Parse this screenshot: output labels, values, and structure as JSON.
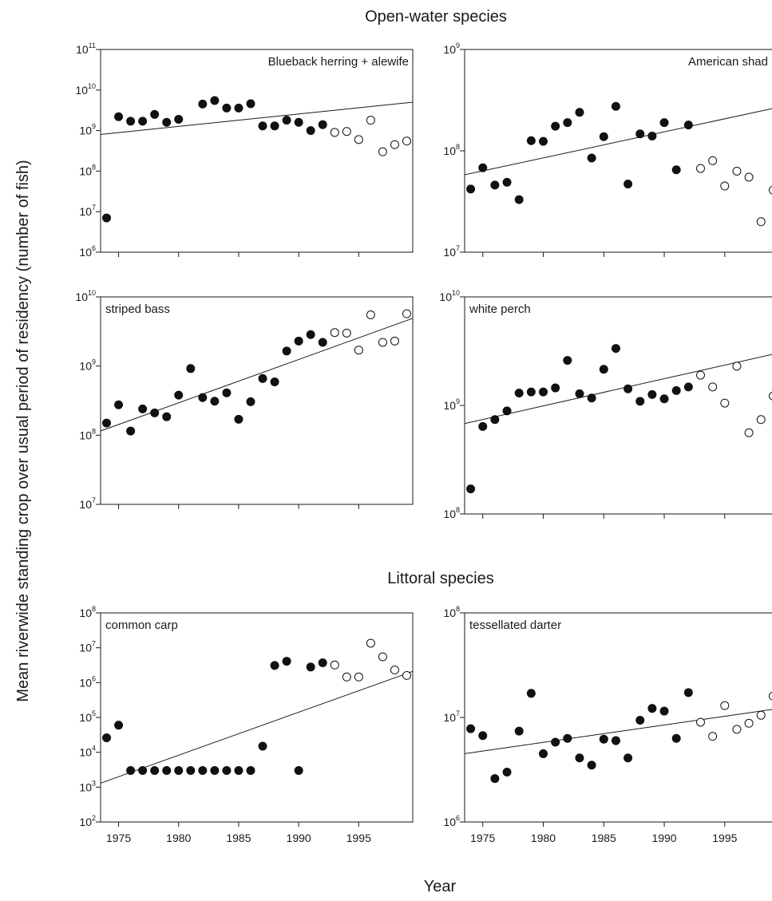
{
  "figure": {
    "group_headings": [
      "Open-water species",
      "Littoral species"
    ],
    "xlabel": "Year",
    "ylabel": "Mean riverwide standing crop over usual period of residency (number of fish)"
  },
  "chart_data": [
    {
      "type": "scatter",
      "label": "Blueback herring + alewife",
      "label_position": "top-right",
      "yscale": "log",
      "ylim_exp": [
        6,
        11
      ],
      "xlim": [
        1973.5,
        1999.5
      ],
      "xticks": [
        1975,
        1980,
        1985,
        1990,
        1995
      ],
      "show_x_tick_labels": false,
      "filled": {
        "x": [
          1974,
          1975,
          1976,
          1977,
          1978,
          1979,
          1980,
          1982,
          1983,
          1984,
          1985,
          1986,
          1987,
          1988,
          1989,
          1990,
          1991,
          1992
        ],
        "y": [
          7000000.0,
          2200000000.0,
          1700000000.0,
          1700000000.0,
          2500000000.0,
          1600000000.0,
          1900000000.0,
          4500000000.0,
          5500000000.0,
          3600000000.0,
          3600000000.0,
          4600000000.0,
          1300000000.0,
          1300000000.0,
          1800000000.0,
          1600000000.0,
          1000000000.0,
          1400000000.0
        ]
      },
      "open": {
        "x": [
          1993,
          1994,
          1995,
          1996,
          1997,
          1998,
          1999
        ],
        "y": [
          900000000.0,
          950000000.0,
          600000000.0,
          1800000000.0,
          300000000.0,
          450000000.0,
          550000000.0
        ]
      },
      "trend": {
        "x": [
          1973.5,
          1999.5
        ],
        "y": [
          800000000.0,
          5000000000.0
        ]
      }
    },
    {
      "type": "scatter",
      "label": "American shad",
      "label_position": "top-right",
      "yscale": "log",
      "ylim_exp": [
        7,
        9
      ],
      "xlim": [
        1973.5,
        1999.5
      ],
      "xticks": [
        1975,
        1980,
        1985,
        1990,
        1995
      ],
      "show_x_tick_labels": false,
      "filled": {
        "x": [
          1974,
          1975,
          1976,
          1977,
          1978,
          1979,
          1980,
          1981,
          1982,
          1983,
          1984,
          1985,
          1986,
          1987,
          1988,
          1989,
          1990,
          1991,
          1992
        ],
        "y": [
          42000000.0,
          68000000.0,
          46000000.0,
          49000000.0,
          33000000.0,
          126000000.0,
          124000000.0,
          175000000.0,
          190000000.0,
          240000000.0,
          85000000.0,
          138000000.0,
          275000000.0,
          47000000.0,
          147000000.0,
          140000000.0,
          190000000.0,
          65000000.0,
          180000000.0
        ]
      },
      "open": {
        "x": [
          1993,
          1994,
          1995,
          1996,
          1997,
          1998,
          1999
        ],
        "y": [
          67000000.0,
          80000000.0,
          45000000.0,
          63000000.0,
          55000000.0,
          20000000.0,
          41000000.0
        ]
      },
      "trend": {
        "x": [
          1973.5,
          1999.5
        ],
        "y": [
          58000000.0,
          270000000.0
        ]
      }
    },
    {
      "type": "scatter",
      "label": "striped bass",
      "label_position": "top-left",
      "yscale": "log",
      "ylim_exp": [
        7,
        10
      ],
      "xlim": [
        1973.5,
        1999.5
      ],
      "xticks": [
        1975,
        1980,
        1985,
        1990,
        1995
      ],
      "show_x_tick_labels": false,
      "filled": {
        "x": [
          1974,
          1975,
          1976,
          1977,
          1978,
          1979,
          1980,
          1981,
          1982,
          1983,
          1984,
          1985,
          1986,
          1987,
          1988,
          1989,
          1990,
          1991,
          1992
        ],
        "y": [
          150000000.0,
          275000000.0,
          115000000.0,
          240000000.0,
          210000000.0,
          185000000.0,
          380000000.0,
          920000000.0,
          350000000.0,
          310000000.0,
          410000000.0,
          170000000.0,
          305000000.0,
          660000000.0,
          590000000.0,
          1650000000.0,
          2300000000.0,
          2850000000.0,
          2200000000.0
        ]
      },
      "open": {
        "x": [
          1993,
          1994,
          1995,
          1996,
          1997,
          1998,
          1999
        ],
        "y": [
          3050000000.0,
          3000000000.0,
          1700000000.0,
          5500000000.0,
          2200000000.0,
          2300000000.0,
          5700000000.0
        ]
      },
      "trend": {
        "x": [
          1973.5,
          1999.5
        ],
        "y": [
          115000000.0,
          4900000000.0
        ]
      }
    },
    {
      "type": "scatter",
      "label": "white perch",
      "label_position": "top-left",
      "yscale": "log",
      "ylim_exp": [
        8,
        10
      ],
      "xlim": [
        1973.5,
        1999.5
      ],
      "xticks": [
        1975,
        1980,
        1985,
        1990,
        1995
      ],
      "show_x_tick_labels": false,
      "filled": {
        "x": [
          1974,
          1975,
          1976,
          1977,
          1978,
          1979,
          1980,
          1981,
          1982,
          1983,
          1984,
          1985,
          1986,
          1987,
          1988,
          1989,
          1990,
          1991,
          1992
        ],
        "y": [
          170000000.0,
          640000000.0,
          740000000.0,
          890000000.0,
          1300000000.0,
          1330000000.0,
          1330000000.0,
          1450000000.0,
          2600000000.0,
          1280000000.0,
          1170000000.0,
          2150000000.0,
          3350000000.0,
          1420000000.0,
          1090000000.0,
          1260000000.0,
          1150000000.0,
          1370000000.0,
          1480000000.0
        ]
      },
      "open": {
        "x": [
          1993,
          1994,
          1995,
          1996,
          1997,
          1998,
          1999
        ],
        "y": [
          1900000000.0,
          1480000000.0,
          1050000000.0,
          2300000000.0,
          560000000.0,
          740000000.0,
          1220000000.0
        ]
      },
      "trend": {
        "x": [
          1973.5,
          1999.5
        ],
        "y": [
          680000000.0,
          3050000000.0
        ]
      }
    },
    {
      "type": "scatter",
      "label": "common carp",
      "label_position": "top-left",
      "yscale": "log",
      "ylim_exp": [
        2,
        8
      ],
      "xlim": [
        1973.5,
        1999.5
      ],
      "xticks": [
        1975,
        1980,
        1985,
        1990,
        1995
      ],
      "show_x_tick_labels": true,
      "filled": {
        "x": [
          1974,
          1975,
          1976,
          1977,
          1978,
          1979,
          1980,
          1981,
          1982,
          1983,
          1984,
          1985,
          1986,
          1987,
          1988,
          1989,
          1990,
          1991,
          1992
        ],
        "y": [
          26000.0,
          60000.0,
          3000.0,
          3000.0,
          3000.0,
          3000.0,
          3000.0,
          3000.0,
          3000.0,
          3000.0,
          3000.0,
          3000.0,
          3000.0,
          15000.0,
          3100000.0,
          4100000.0,
          3000.0,
          2800000.0,
          3700000.0
        ]
      },
      "open": {
        "x": [
          1993,
          1994,
          1995,
          1996,
          1997,
          1998,
          1999
        ],
        "y": [
          3200000.0,
          1450000.0,
          1450000.0,
          13500000.0,
          5500000.0,
          2300000.0,
          1600000.0
        ]
      },
      "trend": {
        "x": [
          1973.5,
          1999.5
        ],
        "y": [
          1300.0,
          2100000.0
        ]
      }
    },
    {
      "type": "scatter",
      "label": "tessellated darter",
      "label_position": "top-left",
      "yscale": "log",
      "ylim_exp": [
        6,
        8
      ],
      "xlim": [
        1973.5,
        1999.5
      ],
      "xticks": [
        1975,
        1980,
        1985,
        1990,
        1995
      ],
      "show_x_tick_labels": true,
      "filled": {
        "x": [
          1974,
          1975,
          1976,
          1977,
          1978,
          1979,
          1980,
          1981,
          1982,
          1983,
          1984,
          1985,
          1986,
          1987,
          1988,
          1989,
          1990,
          1991,
          1992
        ],
        "y": [
          7800000.0,
          6700000.0,
          2600000.0,
          3000000.0,
          7400000.0,
          17000000.0,
          4500000.0,
          5800000.0,
          6300000.0,
          4100000.0,
          3500000.0,
          6200000.0,
          6000000.0,
          4100000.0,
          9400000.0,
          12200000.0,
          11500000.0,
          6300000.0,
          17300000.0
        ]
      },
      "open": {
        "x": [
          1993,
          1994,
          1995,
          1996,
          1997,
          1998,
          1999
        ],
        "y": [
          9000000.0,
          6600000.0,
          13000000.0,
          7700000.0,
          8800000.0,
          10500000.0,
          16000000.0
        ]
      },
      "trend": {
        "x": [
          1973.5,
          1999.5
        ],
        "y": [
          4500000.0,
          12200000.0
        ]
      }
    }
  ]
}
